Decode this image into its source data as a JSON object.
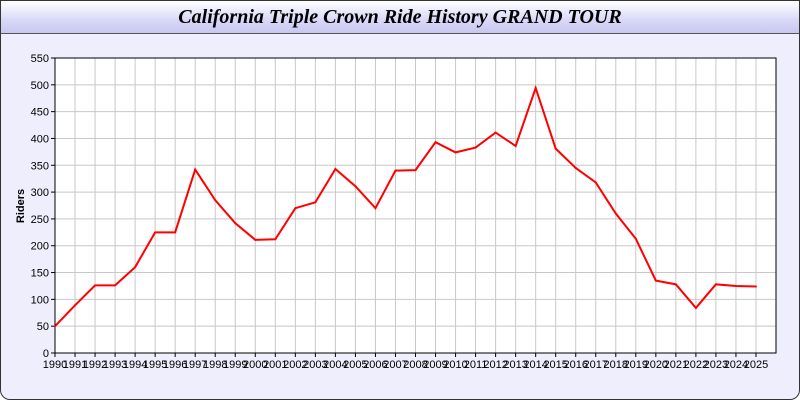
{
  "chart_data": {
    "type": "line",
    "title": "California Triple Crown Ride History GRAND TOUR",
    "xlabel": "",
    "ylabel": "Riders",
    "x": [
      1990,
      1991,
      1992,
      1993,
      1994,
      1995,
      1996,
      1997,
      1998,
      1999,
      2000,
      2001,
      2002,
      2003,
      2004,
      2005,
      2006,
      2007,
      2008,
      2009,
      2010,
      2011,
      2012,
      2013,
      2014,
      2015,
      2016,
      2017,
      2018,
      2019,
      2020,
      2021,
      2022,
      2023,
      2024,
      2025
    ],
    "series": [
      {
        "values": [
          50,
          89,
          126,
          126,
          160,
          225,
          225,
          342,
          285,
          242,
          211,
          212,
          270,
          281,
          343,
          311,
          270,
          340,
          341,
          393,
          374,
          383,
          411,
          386,
          494,
          381,
          345,
          318,
          260,
          213,
          135,
          128,
          84,
          128,
          125,
          124
        ],
        "color": "#ff0000"
      }
    ],
    "yticks": [
      0,
      50,
      100,
      150,
      200,
      250,
      300,
      350,
      400,
      450,
      500,
      550
    ],
    "ylim": [
      0,
      550
    ],
    "xlim": [
      1990,
      2026
    ],
    "grid": true,
    "legend": "none",
    "grid_color": "#c8c8c8",
    "background": "#eeeefc"
  }
}
